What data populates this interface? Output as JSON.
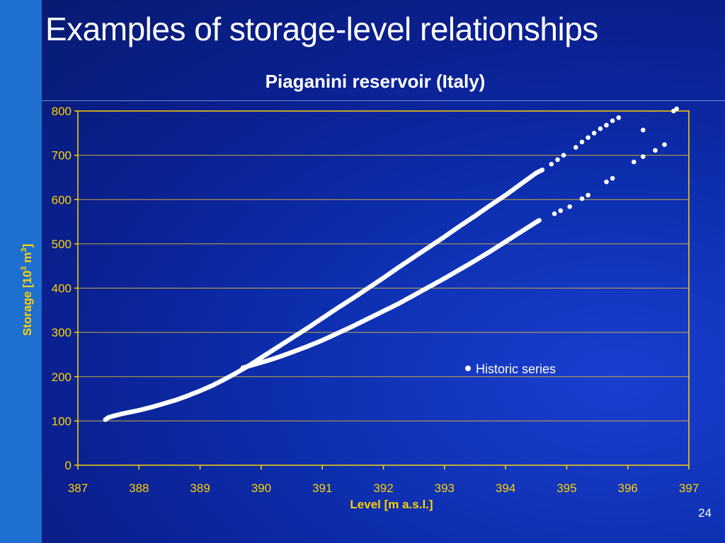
{
  "slide": {
    "title": "Examples of storage-level relationships",
    "page_number": "24"
  },
  "colors": {
    "background": "#0a2090",
    "left_bar": "#1e6fcf",
    "axis": "#ffd200",
    "gridline": "#c7a93a",
    "points": "#ffffff"
  },
  "chart_data": {
    "type": "scatter",
    "title": "Piaganini reservoir (Italy)",
    "xlabel": "Level [m a.s.l.]",
    "ylabel": {
      "prefix": "Storage [10",
      "sup1": "3",
      "mid": " m",
      "sup2": "3",
      "suffix": "]"
    },
    "xlim": [
      387,
      397
    ],
    "ylim": [
      0,
      800
    ],
    "xticks": [
      "387",
      "388",
      "389",
      "390",
      "391",
      "392",
      "393",
      "394",
      "395",
      "396",
      "397"
    ],
    "yticks": [
      "0",
      "100",
      "200",
      "300",
      "400",
      "500",
      "600",
      "700",
      "800"
    ],
    "grid": "horizontal",
    "legend": {
      "position": "center-right",
      "entries": [
        "Historic series"
      ]
    },
    "series": [
      {
        "name": "Historic series",
        "branches": [
          {
            "description": "upper branch (dense)",
            "x": [
              387.45,
              387.5,
              387.6,
              387.75,
              388.0,
              388.2,
              388.4,
              388.6,
              388.8,
              389.0,
              389.2,
              389.4,
              389.6,
              389.8,
              390.0,
              390.25,
              390.5,
              390.75,
              391.0,
              391.25,
              391.5,
              391.75,
              392.0,
              392.25,
              392.5,
              392.75,
              393.0,
              393.25,
              393.5,
              393.75,
              394.0,
              394.25,
              394.5,
              394.6
            ],
            "y": [
              103,
              108,
              112,
              117,
              124,
              131,
              139,
              147,
              157,
              168,
              180,
              194,
              209,
              225,
              243,
              265,
              287,
              309,
              332,
              355,
              377,
              400,
              423,
              447,
              470,
              493,
              516,
              540,
              563,
              587,
              610,
              635,
              660,
              667
            ],
            "step": 0.02
          },
          {
            "description": "upper branch (sparse)",
            "x": [
              394.75,
              394.85,
              394.95,
              395.15,
              395.25,
              395.35,
              395.45,
              395.55,
              395.65,
              395.75,
              395.85,
              396.75,
              396.8
            ],
            "y": [
              680,
              690,
              700,
              718,
              730,
              740,
              750,
              760,
              768,
              778,
              785,
              800,
              805
            ],
            "step": 0
          },
          {
            "description": "lower branch (dense)",
            "x": [
              389.7,
              389.9,
              390.1,
              390.3,
              390.5,
              390.75,
              391.0,
              391.25,
              391.5,
              391.75,
              392.0,
              392.25,
              392.5,
              392.75,
              393.0,
              393.25,
              393.5,
              393.75,
              394.0,
              394.25,
              394.5,
              394.55
            ],
            "y": [
              220,
              228,
              236,
              245,
              255,
              268,
              282,
              298,
              314,
              331,
              348,
              365,
              384,
              403,
              422,
              442,
              462,
              483,
              505,
              527,
              549,
              553
            ],
            "step": 0.02
          },
          {
            "description": "lower branch (sparse)",
            "x": [
              394.8,
              394.9,
              395.05,
              395.25,
              395.35,
              395.65,
              395.75,
              396.1,
              396.25,
              396.45,
              396.6
            ],
            "y": [
              568,
              575,
              584,
              602,
              610,
              640,
              648,
              685,
              697,
              711,
              724
            ],
            "step": 0
          },
          {
            "description": "outlier",
            "x": [
              396.25
            ],
            "y": [
              757
            ],
            "step": 0
          }
        ]
      }
    ]
  }
}
